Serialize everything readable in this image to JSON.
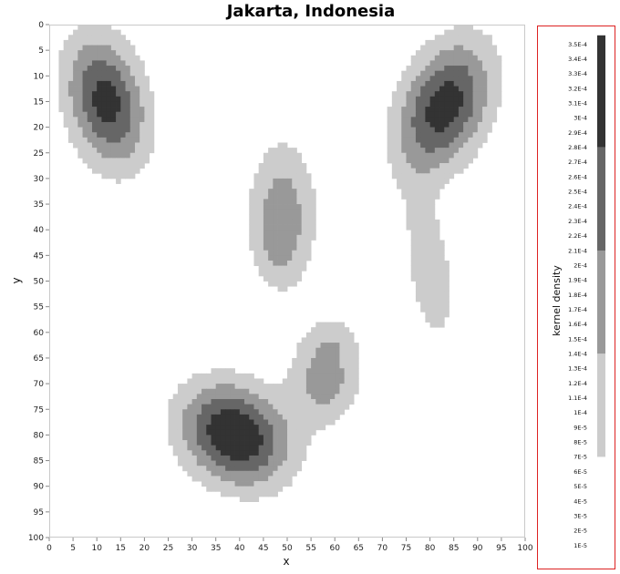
{
  "chart_data": {
    "type": "heatmap",
    "title": "Jakarta, Indonesia",
    "xlabel": "x",
    "ylabel": "y",
    "xlim": [
      0,
      100
    ],
    "ylim": [
      0,
      100
    ],
    "y_inverted": true,
    "x_ticks": [
      "0",
      "5",
      "10",
      "15",
      "20",
      "25",
      "30",
      "35",
      "40",
      "45",
      "50",
      "55",
      "60",
      "65",
      "70",
      "75",
      "80",
      "85",
      "90",
      "95",
      "100"
    ],
    "y_ticks": [
      "0",
      "5",
      "10",
      "15",
      "20",
      "25",
      "30",
      "35",
      "40",
      "45",
      "50",
      "55",
      "60",
      "65",
      "70",
      "75",
      "80",
      "85",
      "90",
      "95",
      "100"
    ],
    "colorbar": {
      "title": "kernel density",
      "labels": [
        "3.5E-4",
        "3.4E-4",
        "3.3E-4",
        "3.2E-4",
        "3.1E-4",
        "3E-4",
        "2.9E-4",
        "2.8E-4",
        "2.7E-4",
        "2.6E-4",
        "2.5E-4",
        "2.4E-4",
        "2.3E-4",
        "2.2E-4",
        "2.1E-4",
        "2E-4",
        "1.9E-4",
        "1.8E-4",
        "1.7E-4",
        "1.6E-4",
        "1.5E-4",
        "1.4E-4",
        "1.3E-4",
        "1.2E-4",
        "1.1E-4",
        "1E-4",
        "9E-5",
        "8E-5",
        "7E-5",
        "6E-5",
        "5E-5",
        "4E-5",
        "3E-5",
        "2E-5",
        "1E-5"
      ],
      "bands": [
        {
          "from": 7e-05,
          "to": 0.00014,
          "color": "#cccccc"
        },
        {
          "from": 0.00014,
          "to": 0.00021,
          "color": "#999999"
        },
        {
          "from": 0.00021,
          "to": 0.00028,
          "color": "#666666"
        },
        {
          "from": 0.00028,
          "to": 0.00036,
          "color": "#333333"
        }
      ],
      "border_color": "#dd2222"
    },
    "hotspots": [
      {
        "x": 12,
        "y": 15,
        "sx": 6,
        "sy": 9,
        "rho": 0.25,
        "peak": 0.00031
      },
      {
        "x": 83,
        "y": 16,
        "sx": 7,
        "sy": 9,
        "rho": -0.35,
        "peak": 0.00032
      },
      {
        "x": 49,
        "y": 37,
        "sx": 5,
        "sy": 10,
        "rho": 0.0,
        "peak": 0.00018
      },
      {
        "x": 48,
        "y": 43,
        "sx": 3,
        "sy": 5,
        "rho": 0.0,
        "peak": 4e-05
      },
      {
        "x": 80,
        "y": 48,
        "sx": 4,
        "sy": 11,
        "rho": 0.4,
        "peak": 0.00012
      },
      {
        "x": 39,
        "y": 80,
        "sx": 8,
        "sy": 7,
        "rho": 0.2,
        "peak": 0.00036
      },
      {
        "x": 58,
        "y": 69,
        "sx": 5,
        "sy": 6,
        "rho": 0.0,
        "peak": 0.00018
      },
      {
        "x": 60,
        "y": 61,
        "sx": 4,
        "sy": 3,
        "rho": 0.0,
        "peak": 6e-05
      }
    ]
  }
}
